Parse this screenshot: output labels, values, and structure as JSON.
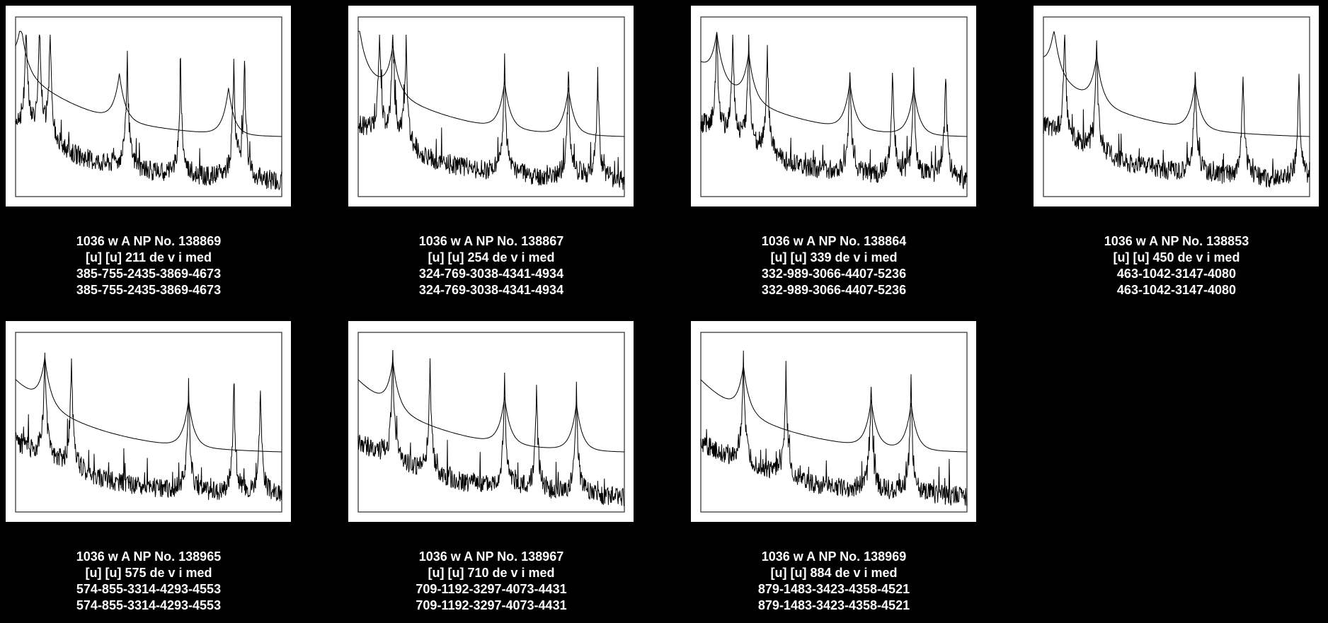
{
  "theme": {
    "background": "#000000",
    "caption_color": "#ffffff",
    "plot_background": "#ffffff",
    "trace_color": "#000000"
  },
  "items": [
    {
      "caption": [
        "1036 w A NP No. 138869",
        "[u] [u] 211 de v i med",
        "385-755-2435-3869-4673",
        "385-755-2435-3869-4673"
      ],
      "chart_data": {
        "type": "line",
        "envelope_peaks": [
          0.02,
          0.39,
          0.8
        ],
        "spectrum_peaks": [
          0.04,
          0.09,
          0.13,
          0.42,
          0.62,
          0.82,
          0.86
        ]
      }
    },
    {
      "caption": [
        "1036 w A NP No. 138867",
        "[u] [u] 254 de v i med",
        "324-769-3038-4341-4934",
        "324-769-3038-4341-4934"
      ],
      "chart_data": {
        "type": "line",
        "envelope_peaks": [
          0.0,
          0.13,
          0.55,
          0.79
        ],
        "spectrum_peaks": [
          0.08,
          0.13,
          0.18,
          0.55,
          0.79,
          0.9
        ]
      }
    },
    {
      "caption": [
        "1036 w A NP No. 138864",
        "[u] [u] 339 de v i med",
        "332-989-3066-4407-5236",
        "332-989-3066-4407-5236"
      ],
      "chart_data": {
        "type": "line",
        "envelope_peaks": [
          0.06,
          0.18,
          0.56,
          0.8
        ],
        "spectrum_peaks": [
          0.06,
          0.12,
          0.18,
          0.25,
          0.56,
          0.72,
          0.8,
          0.92
        ]
      }
    },
    {
      "caption": [
        "1036 w A NP No. 138853",
        "[u] [u] 450 de v i med",
        "463-1042-3147-4080",
        "463-1042-3147-4080"
      ],
      "chart_data": {
        "type": "line",
        "envelope_peaks": [
          0.04,
          0.2,
          0.57
        ],
        "spectrum_peaks": [
          0.08,
          0.2,
          0.57,
          0.75,
          0.96
        ]
      }
    },
    {
      "caption": [
        "1036 w A NP No. 138965",
        "[u] [u] 575 de v i med",
        "574-855-3314-4293-4553",
        "574-855-3314-4293-4553"
      ],
      "chart_data": {
        "type": "line",
        "envelope_peaks": [
          0.11,
          0.65
        ],
        "spectrum_peaks": [
          0.11,
          0.21,
          0.65,
          0.82,
          0.92
        ]
      }
    },
    {
      "caption": [
        "1036 w A NP No. 138967",
        "[u] [u] 710 de v i med",
        "709-1192-3297-4073-4431",
        "709-1192-3297-4073-4431"
      ],
      "chart_data": {
        "type": "line",
        "envelope_peaks": [
          0.13,
          0.55,
          0.82
        ],
        "spectrum_peaks": [
          0.13,
          0.27,
          0.55,
          0.67,
          0.82
        ]
      }
    },
    {
      "caption": [
        "1036 w A NP No. 138969",
        "[u] [u] 884 de v i med",
        "879-1483-3423-4358-4521",
        "879-1483-3423-4358-4521"
      ],
      "chart_data": {
        "type": "line",
        "envelope_peaks": [
          0.16,
          0.64,
          0.79
        ],
        "spectrum_peaks": [
          0.16,
          0.32,
          0.64,
          0.79
        ]
      }
    }
  ]
}
